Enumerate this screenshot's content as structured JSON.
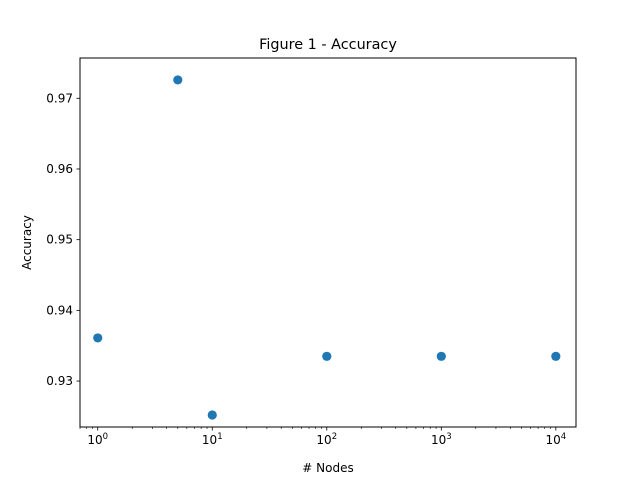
{
  "chart_data": {
    "type": "scatter",
    "title": "Figure 1 - Accuracy",
    "xlabel": "# Nodes",
    "ylabel": "Accuracy",
    "x_scale": "log",
    "xlim": [
      0.7,
      15000
    ],
    "ylim": [
      0.9235,
      0.9757
    ],
    "x_ticks": [
      {
        "base": "10",
        "exp": "0",
        "value": 1
      },
      {
        "base": "10",
        "exp": "1",
        "value": 10
      },
      {
        "base": "10",
        "exp": "2",
        "value": 100
      },
      {
        "base": "10",
        "exp": "3",
        "value": 1000
      },
      {
        "base": "10",
        "exp": "4",
        "value": 10000
      }
    ],
    "y_ticks": [
      "0.93",
      "0.94",
      "0.95",
      "0.96",
      "0.97"
    ],
    "grid": false,
    "marker_color": "#1f77b4",
    "points": [
      {
        "x": 1,
        "y": 0.9361
      },
      {
        "x": 5,
        "y": 0.9726
      },
      {
        "x": 10,
        "y": 0.9252
      },
      {
        "x": 100,
        "y": 0.9335
      },
      {
        "x": 1000,
        "y": 0.9335
      },
      {
        "x": 10000,
        "y": 0.9335
      }
    ]
  }
}
